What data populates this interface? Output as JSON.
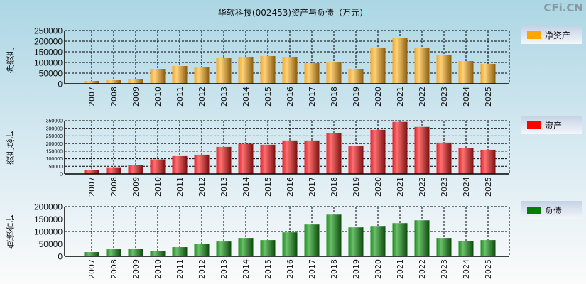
{
  "title": "华软科技(002453)资产与负债（万元）",
  "brand": "CFi.CN",
  "chart_data": [
    {
      "type": "bar",
      "ylabel": "净资产",
      "legend": "净资产",
      "color": "#f5a623",
      "ylim": [
        0,
        250000
      ],
      "yticks": [
        0,
        50000,
        100000,
        150000,
        200000,
        250000
      ],
      "categories": [
        "2007",
        "2008",
        "2009",
        "2010",
        "2011",
        "2012",
        "2013",
        "2014",
        "2015",
        "2016",
        "2017",
        "2018",
        "2019",
        "2020",
        "2021",
        "2022",
        "2023",
        "2024",
        "2025"
      ],
      "values": [
        13300,
        16700,
        23300,
        70000,
        83300,
        76700,
        123300,
        126700,
        130000,
        126700,
        96700,
        100000,
        70000,
        170000,
        213300,
        166700,
        133300,
        106700,
        93300
      ]
    },
    {
      "type": "bar",
      "ylabel": "资产总计",
      "legend": "资产",
      "color": "#ff0000",
      "ylim": [
        0,
        350000
      ],
      "yticks": [
        0,
        50000,
        100000,
        150000,
        200000,
        250000,
        300000,
        350000
      ],
      "categories": [
        "2007",
        "2008",
        "2009",
        "2010",
        "2011",
        "2012",
        "2013",
        "2014",
        "2015",
        "2016",
        "2017",
        "2018",
        "2019",
        "2020",
        "2021",
        "2022",
        "2023",
        "2024",
        "2025"
      ],
      "values": [
        28000,
        43800,
        56000,
        95000,
        117000,
        126500,
        178000,
        198000,
        192000,
        220000,
        220000,
        267000,
        183000,
        290000,
        342000,
        309000,
        206000,
        169000,
        159000
      ]
    },
    {
      "type": "bar",
      "ylabel": "负债合计",
      "legend": "负债",
      "color": "#008000",
      "ylim": [
        0,
        200000
      ],
      "yticks": [
        0,
        50000,
        100000,
        150000,
        200000
      ],
      "categories": [
        "2007",
        "2008",
        "2009",
        "2010",
        "2011",
        "2012",
        "2013",
        "2014",
        "2015",
        "2016",
        "2017",
        "2018",
        "2019",
        "2020",
        "2021",
        "2022",
        "2023",
        "2024",
        "2025"
      ],
      "values": [
        17000,
        28400,
        31300,
        22700,
        37000,
        49300,
        59700,
        74000,
        65400,
        96700,
        128000,
        167800,
        116600,
        119400,
        133600,
        145000,
        74000,
        62600,
        65400
      ]
    }
  ]
}
